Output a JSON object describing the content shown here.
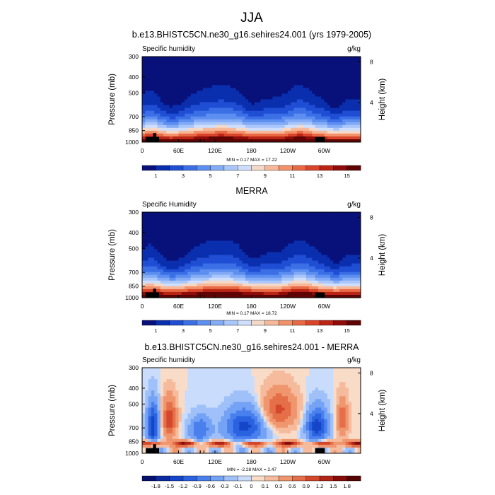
{
  "figure": {
    "title": "JJA"
  },
  "chart_data": [
    {
      "type": "heatmap",
      "title": "b.e13.BHISTC5CN.ne30_g16.sehires24.001 (yrs 1979-2005)",
      "left_label": "Specific humidity",
      "right_label": "g/kg",
      "ylabel": "Pressure (mb)",
      "y2label": "Height (km)",
      "x_ticks": [
        "0",
        "60E",
        "120E",
        "180",
        "120W",
        "60W"
      ],
      "x_tick_lon": [
        0,
        60,
        120,
        180,
        240,
        300
      ],
      "xlim": [
        0,
        360
      ],
      "y_ticks": [
        "300",
        "400",
        "500",
        "700",
        "850",
        "1000"
      ],
      "y_tick_values": [
        300,
        400,
        500,
        700,
        850,
        1000
      ],
      "ylim": [
        300,
        1000
      ],
      "y_log": true,
      "y2_ticks": [
        "8",
        "4"
      ],
      "y2_tick_values": [
        8,
        4
      ],
      "stats": "MIN =   0.17  MAX =  17.22",
      "colorbar": {
        "labels": [
          "1",
          "3",
          "5",
          "7",
          "9",
          "11",
          "13",
          "15"
        ],
        "colors": [
          "#08107a",
          "#0a2fae",
          "#1f4ed4",
          "#3b6fe6",
          "#5d8ff0",
          "#83abf6",
          "#a9c7fa",
          "#cfdefc",
          "#f4d9c8",
          "#f7b89a",
          "#f3916a",
          "#e86a44",
          "#d9442a",
          "#bb2516",
          "#8f0c0a",
          "#5e0404"
        ]
      },
      "field": {
        "kind": "sh",
        "scale": 1.0
      }
    },
    {
      "type": "heatmap",
      "title": "MERRA",
      "left_label": "Specific Humidity",
      "right_label": "g/kg",
      "ylabel": "Pressure (mb)",
      "y2label": "Height (km)",
      "x_ticks": [
        "0",
        "60E",
        "120E",
        "180",
        "120W",
        "60W"
      ],
      "x_tick_lon": [
        0,
        60,
        120,
        180,
        240,
        300
      ],
      "xlim": [
        0,
        360
      ],
      "y_ticks": [
        "300",
        "400",
        "500",
        "700",
        "850",
        "1000"
      ],
      "y_tick_values": [
        300,
        400,
        500,
        700,
        850,
        1000
      ],
      "ylim": [
        300,
        1000
      ],
      "y_log": true,
      "y2_ticks": [
        "8",
        "4"
      ],
      "y2_tick_values": [
        8,
        4
      ],
      "stats": "MIN =   0.17  MAX =  18.72",
      "colorbar": {
        "labels": [
          "1",
          "3",
          "5",
          "7",
          "9",
          "11",
          "13",
          "15"
        ],
        "colors": [
          "#08107a",
          "#0a2fae",
          "#1f4ed4",
          "#3b6fe6",
          "#5d8ff0",
          "#83abf6",
          "#a9c7fa",
          "#cfdefc",
          "#f4d9c8",
          "#f7b89a",
          "#f3916a",
          "#e86a44",
          "#d9442a",
          "#bb2516",
          "#8f0c0a",
          "#5e0404"
        ]
      },
      "field": {
        "kind": "sh",
        "scale": 1.05
      }
    },
    {
      "type": "heatmap",
      "title": "b.e13.BHISTC5CN.ne30_g16.sehires24.001 - MERRA",
      "left_label": "Specific humidity",
      "right_label": "g/kg",
      "ylabel": "Pressure (mb)",
      "y2label": "Height (km)",
      "x_ticks": [
        "0",
        "60E",
        "120E",
        "180",
        "120W",
        "60W"
      ],
      "x_tick_lon": [
        0,
        60,
        120,
        180,
        240,
        300
      ],
      "xlim": [
        0,
        360
      ],
      "y_ticks": [
        "300",
        "400",
        "500",
        "700",
        "850",
        "1000"
      ],
      "y_tick_values": [
        300,
        400,
        500,
        700,
        850,
        1000
      ],
      "ylim": [
        300,
        1000
      ],
      "y_log": true,
      "y2_ticks": [
        "8",
        "4"
      ],
      "y2_tick_values": [
        8,
        4
      ],
      "stats": "MIN =  -2.28  MAX =   2.47",
      "colorbar": {
        "labels": [
          "-1.8",
          "-1.5",
          "-1.2",
          "-0.9",
          "-0.6",
          "-0.3",
          "-0.1",
          "0",
          "0.1",
          "0.3",
          "0.6",
          "0.9",
          "1.2",
          "1.5",
          "1.8"
        ],
        "colors": [
          "#06106e",
          "#0a2aa0",
          "#1545c8",
          "#2a62e0",
          "#4a80ee",
          "#74a2f4",
          "#9fc0f8",
          "#cadcfb",
          "#f8dcc8",
          "#f5bb9c",
          "#f0966e",
          "#e56f48",
          "#d3482c",
          "#b22618",
          "#860c0a",
          "#560404"
        ]
      },
      "field": {
        "kind": "diff",
        "scale": 1.0
      }
    }
  ]
}
